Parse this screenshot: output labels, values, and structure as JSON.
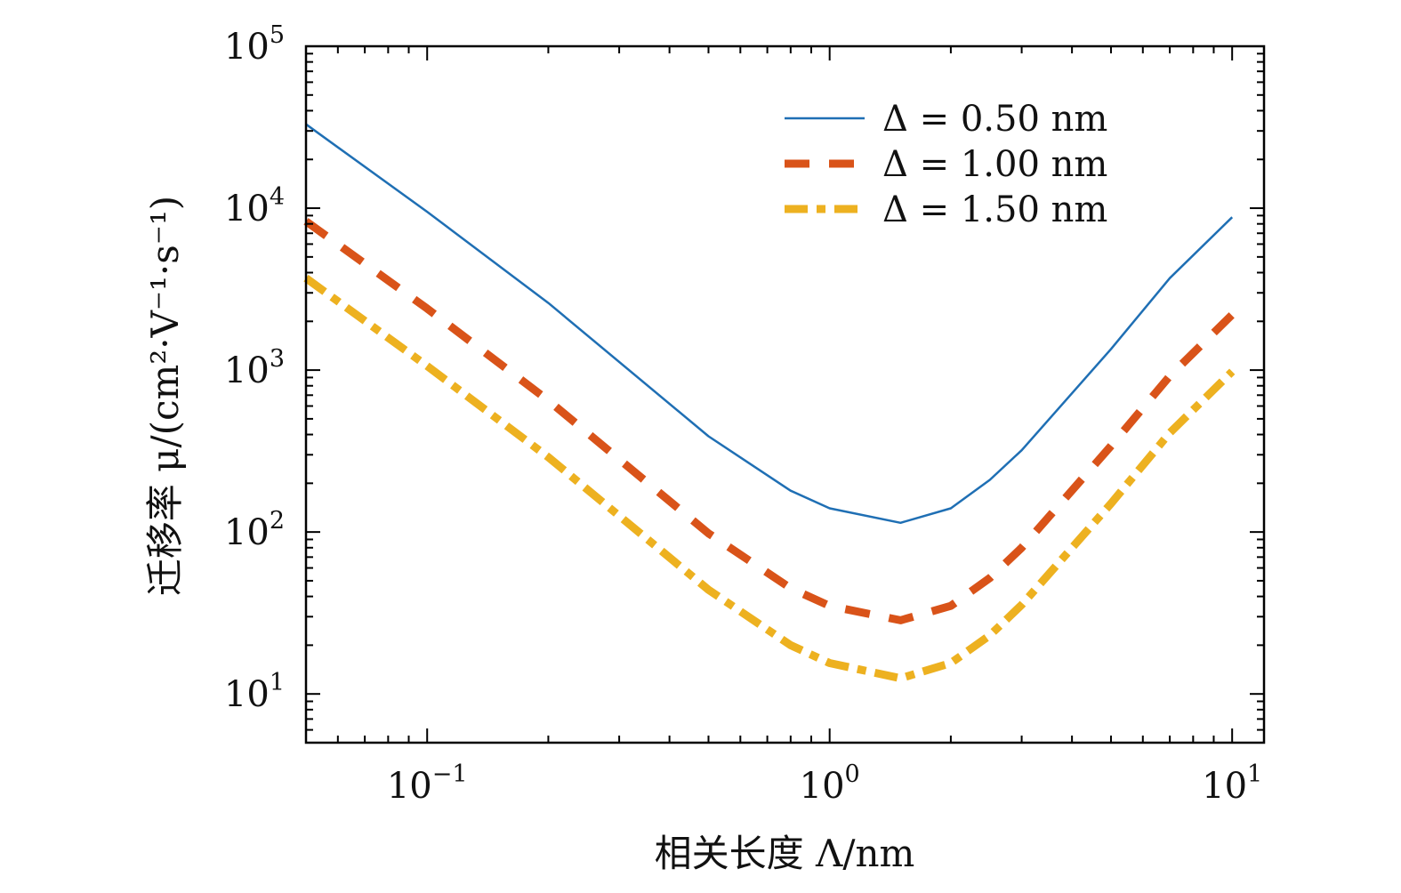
{
  "chart_data": {
    "type": "line",
    "xlabel": "相关长度 Λ/nm",
    "ylabel": "迁移率 μ/(cm²·V⁻¹·s⁻¹)",
    "x_scale": "log",
    "y_scale": "log",
    "xlim": [
      0.05,
      12
    ],
    "ylim": [
      5,
      100000
    ],
    "x_ticks": [
      {
        "value": 0.1,
        "base": "10",
        "exp": "−1"
      },
      {
        "value": 1,
        "base": "10",
        "exp": "0"
      },
      {
        "value": 10,
        "base": "10",
        "exp": "1"
      }
    ],
    "y_ticks": [
      {
        "value": 10,
        "base": "10",
        "exp": "1"
      },
      {
        "value": 100,
        "base": "10",
        "exp": "2"
      },
      {
        "value": 1000,
        "base": "10",
        "exp": "3"
      },
      {
        "value": 10000,
        "base": "10",
        "exp": "4"
      },
      {
        "value": 100000,
        "base": "10",
        "exp": "5"
      }
    ],
    "grid": false,
    "legend_position": "top-right",
    "series": [
      {
        "name": "Δ = 0.50 nm",
        "color": "#1f6fb4",
        "style": "solid",
        "x": [
          0.05,
          0.1,
          0.2,
          0.5,
          0.8,
          1.0,
          1.5,
          2.0,
          2.5,
          3.0,
          5.0,
          7.0,
          10.0
        ],
        "y": [
          33000,
          9500,
          2600,
          390,
          180,
          140,
          114,
          140,
          210,
          320,
          1350,
          3700,
          8800
        ]
      },
      {
        "name": "Δ = 1.00 nm",
        "color": "#d95319",
        "style": "dashed",
        "x": [
          0.05,
          0.1,
          0.2,
          0.5,
          0.8,
          1.0,
          1.5,
          2.0,
          2.5,
          3.0,
          5.0,
          7.0,
          10.0
        ],
        "y": [
          8300,
          2400,
          650,
          98,
          45,
          35,
          28.5,
          35,
          52,
          80,
          340,
          920,
          2200
        ]
      },
      {
        "name": "Δ = 1.50 nm",
        "color": "#edb120",
        "style": "dashdot",
        "x": [
          0.05,
          0.1,
          0.2,
          0.5,
          0.8,
          1.0,
          1.5,
          2.0,
          2.5,
          3.0,
          5.0,
          7.0,
          10.0
        ],
        "y": [
          3700,
          1060,
          290,
          44,
          20,
          15.5,
          12.5,
          15.5,
          23,
          35.5,
          150,
          410,
          980
        ]
      }
    ]
  }
}
